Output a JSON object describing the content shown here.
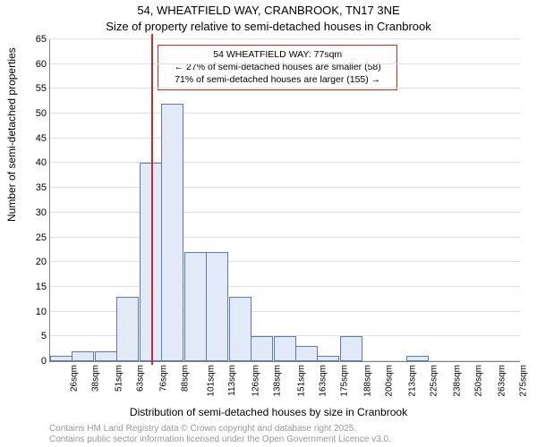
{
  "title": "54, WHEATFIELD WAY, CRANBROOK, TN17 3NE",
  "subtitle": "Size of property relative to semi-detached houses in Cranbrook",
  "ylabel": "Number of semi-detached properties",
  "xlabel": "Distribution of semi-detached houses by size in Cranbrook",
  "footer1": "Contains HM Land Registry data © Crown copyright and database right 2025.",
  "footer2": "Contains public sector information licensed under the Open Government Licence v3.0.",
  "annot_line1": "54 WHEATFIELD WAY: 77sqm",
  "annot_line2": "← 27% of semi-detached houses are smaller (58)",
  "annot_line3": "71% of semi-detached houses are larger (155) →",
  "chart": {
    "type": "histogram",
    "background_color": "#ffffff",
    "grid_color": "#e0e0e0",
    "axis_color": "#808080",
    "bar_fill": "#e2eaf8",
    "bar_border": "#5b7bb8",
    "marker_color": "#d62728",
    "marker_x": 77,
    "annot_border": "#d62728",
    "annot_bg": "#ffffff",
    "ylim": [
      0,
      65
    ],
    "yticks": [
      0,
      5,
      10,
      15,
      20,
      25,
      30,
      35,
      40,
      45,
      50,
      55,
      60,
      65
    ],
    "xticks": [
      26,
      38,
      51,
      63,
      76,
      88,
      101,
      113,
      126,
      138,
      151,
      163,
      175,
      188,
      200,
      213,
      225,
      238,
      250,
      263,
      275
    ],
    "xtick_suffix": "sqm",
    "xmin": 20,
    "xmax": 282,
    "bin_width": 12.5,
    "bars": [
      {
        "x": 26,
        "h": 1
      },
      {
        "x": 38,
        "h": 2
      },
      {
        "x": 51,
        "h": 2
      },
      {
        "x": 63,
        "h": 13
      },
      {
        "x": 76,
        "h": 40
      },
      {
        "x": 88,
        "h": 52
      },
      {
        "x": 101,
        "h": 22
      },
      {
        "x": 113,
        "h": 22
      },
      {
        "x": 126,
        "h": 13
      },
      {
        "x": 138,
        "h": 5
      },
      {
        "x": 151,
        "h": 5
      },
      {
        "x": 163,
        "h": 3
      },
      {
        "x": 175,
        "h": 1
      },
      {
        "x": 188,
        "h": 5
      },
      {
        "x": 200,
        "h": 0
      },
      {
        "x": 213,
        "h": 0
      },
      {
        "x": 225,
        "h": 1
      },
      {
        "x": 238,
        "h": 0
      },
      {
        "x": 250,
        "h": 0
      },
      {
        "x": 263,
        "h": 0
      },
      {
        "x": 275,
        "h": 0
      }
    ],
    "title_fontsize": 13,
    "label_fontsize": 12,
    "tick_fontsize": 11
  }
}
